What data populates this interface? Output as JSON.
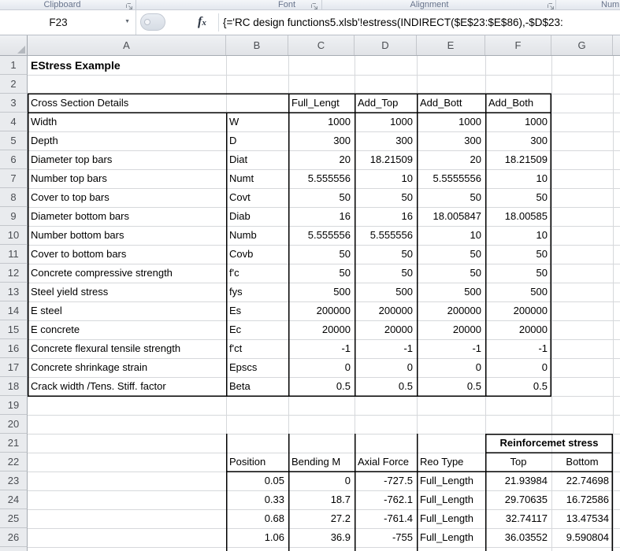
{
  "ribbon": {
    "groups": [
      {
        "label": "Clipboard"
      },
      {
        "label": "Font"
      },
      {
        "label": "Alignment"
      },
      {
        "label": "Numb"
      }
    ]
  },
  "formula_bar": {
    "cell_reference": "F23",
    "fx_label": "fx",
    "formula": "{='RC design functions5.xlsb'!estress(INDIRECT($E$23:$E$86),-$D$23:"
  },
  "sheet": {
    "column_headers": [
      "A",
      "B",
      "C",
      "D",
      "E",
      "F",
      "G"
    ],
    "row_numbers": [
      1,
      2,
      3,
      4,
      5,
      6,
      7,
      8,
      9,
      10,
      11,
      12,
      13,
      14,
      15,
      16,
      17,
      18,
      19,
      20,
      21,
      22,
      23,
      24,
      25,
      26
    ],
    "cells": [
      {
        "ref": "A1",
        "text": "EStress Example",
        "align": "left",
        "style": "title"
      },
      {
        "ref": "A3",
        "text": "Cross Section Details",
        "align": "left"
      },
      {
        "ref": "C3",
        "text": "Full_Lengt",
        "align": "left"
      },
      {
        "ref": "D3",
        "text": "Add_Top",
        "align": "left"
      },
      {
        "ref": "E3",
        "text": "Add_Bott",
        "align": "left"
      },
      {
        "ref": "F3",
        "text": "Add_Both",
        "align": "left"
      },
      {
        "ref": "A4",
        "text": "Width",
        "align": "left"
      },
      {
        "ref": "B4",
        "text": "W",
        "align": "left"
      },
      {
        "ref": "C4",
        "text": "1000",
        "align": "right"
      },
      {
        "ref": "D4",
        "text": "1000",
        "align": "right"
      },
      {
        "ref": "E4",
        "text": "1000",
        "align": "right"
      },
      {
        "ref": "F4",
        "text": "1000",
        "align": "right"
      },
      {
        "ref": "A5",
        "text": "Depth",
        "align": "left"
      },
      {
        "ref": "B5",
        "text": "D",
        "align": "left"
      },
      {
        "ref": "C5",
        "text": "300",
        "align": "right"
      },
      {
        "ref": "D5",
        "text": "300",
        "align": "right"
      },
      {
        "ref": "E5",
        "text": "300",
        "align": "right"
      },
      {
        "ref": "F5",
        "text": "300",
        "align": "right"
      },
      {
        "ref": "A6",
        "text": "Diameter top bars",
        "align": "left"
      },
      {
        "ref": "B6",
        "text": "Diat",
        "align": "left"
      },
      {
        "ref": "C6",
        "text": "20",
        "align": "right"
      },
      {
        "ref": "D6",
        "text": "18.21509",
        "align": "right"
      },
      {
        "ref": "E6",
        "text": "20",
        "align": "right"
      },
      {
        "ref": "F6",
        "text": "18.21509",
        "align": "right"
      },
      {
        "ref": "A7",
        "text": "Number top bars",
        "align": "left"
      },
      {
        "ref": "B7",
        "text": "Numt",
        "align": "left"
      },
      {
        "ref": "C7",
        "text": "5.555556",
        "align": "right"
      },
      {
        "ref": "D7",
        "text": "10",
        "align": "right"
      },
      {
        "ref": "E7",
        "text": "5.5555556",
        "align": "right"
      },
      {
        "ref": "F7",
        "text": "10",
        "align": "right"
      },
      {
        "ref": "A8",
        "text": "Cover to top bars",
        "align": "left"
      },
      {
        "ref": "B8",
        "text": "Covt",
        "align": "left"
      },
      {
        "ref": "C8",
        "text": "50",
        "align": "right"
      },
      {
        "ref": "D8",
        "text": "50",
        "align": "right"
      },
      {
        "ref": "E8",
        "text": "50",
        "align": "right"
      },
      {
        "ref": "F8",
        "text": "50",
        "align": "right"
      },
      {
        "ref": "A9",
        "text": "Diameter bottom bars",
        "align": "left"
      },
      {
        "ref": "B9",
        "text": "Diab",
        "align": "left"
      },
      {
        "ref": "C9",
        "text": "16",
        "align": "right"
      },
      {
        "ref": "D9",
        "text": "16",
        "align": "right"
      },
      {
        "ref": "E9",
        "text": "18.005847",
        "align": "right"
      },
      {
        "ref": "F9",
        "text": "18.00585",
        "align": "right"
      },
      {
        "ref": "A10",
        "text": "Number bottom bars",
        "align": "left"
      },
      {
        "ref": "B10",
        "text": "Numb",
        "align": "left"
      },
      {
        "ref": "C10",
        "text": "5.555556",
        "align": "right"
      },
      {
        "ref": "D10",
        "text": "5.555556",
        "align": "right"
      },
      {
        "ref": "E10",
        "text": "10",
        "align": "right"
      },
      {
        "ref": "F10",
        "text": "10",
        "align": "right"
      },
      {
        "ref": "A11",
        "text": "Cover to bottom bars",
        "align": "left"
      },
      {
        "ref": "B11",
        "text": "Covb",
        "align": "left"
      },
      {
        "ref": "C11",
        "text": "50",
        "align": "right"
      },
      {
        "ref": "D11",
        "text": "50",
        "align": "right"
      },
      {
        "ref": "E11",
        "text": "50",
        "align": "right"
      },
      {
        "ref": "F11",
        "text": "50",
        "align": "right"
      },
      {
        "ref": "A12",
        "text": "Concrete compressive strength",
        "align": "left"
      },
      {
        "ref": "B12",
        "text": "f'c",
        "align": "left"
      },
      {
        "ref": "C12",
        "text": "50",
        "align": "right"
      },
      {
        "ref": "D12",
        "text": "50",
        "align": "right"
      },
      {
        "ref": "E12",
        "text": "50",
        "align": "right"
      },
      {
        "ref": "F12",
        "text": "50",
        "align": "right"
      },
      {
        "ref": "A13",
        "text": "Steel yield stress",
        "align": "left"
      },
      {
        "ref": "B13",
        "text": "fys",
        "align": "left"
      },
      {
        "ref": "C13",
        "text": "500",
        "align": "right"
      },
      {
        "ref": "D13",
        "text": "500",
        "align": "right"
      },
      {
        "ref": "E13",
        "text": "500",
        "align": "right"
      },
      {
        "ref": "F13",
        "text": "500",
        "align": "right"
      },
      {
        "ref": "A14",
        "text": "E steel",
        "align": "left"
      },
      {
        "ref": "B14",
        "text": "Es",
        "align": "left"
      },
      {
        "ref": "C14",
        "text": "200000",
        "align": "right"
      },
      {
        "ref": "D14",
        "text": "200000",
        "align": "right"
      },
      {
        "ref": "E14",
        "text": "200000",
        "align": "right"
      },
      {
        "ref": "F14",
        "text": "200000",
        "align": "right"
      },
      {
        "ref": "A15",
        "text": "E concrete",
        "align": "left"
      },
      {
        "ref": "B15",
        "text": "Ec",
        "align": "left"
      },
      {
        "ref": "C15",
        "text": "20000",
        "align": "right"
      },
      {
        "ref": "D15",
        "text": "20000",
        "align": "right"
      },
      {
        "ref": "E15",
        "text": "20000",
        "align": "right"
      },
      {
        "ref": "F15",
        "text": "20000",
        "align": "right"
      },
      {
        "ref": "A16",
        "text": "Concrete flexural tensile strength",
        "align": "left"
      },
      {
        "ref": "B16",
        "text": "f'ct",
        "align": "left"
      },
      {
        "ref": "C16",
        "text": "-1",
        "align": "right"
      },
      {
        "ref": "D16",
        "text": "-1",
        "align": "right"
      },
      {
        "ref": "E16",
        "text": "-1",
        "align": "right"
      },
      {
        "ref": "F16",
        "text": "-1",
        "align": "right"
      },
      {
        "ref": "A17",
        "text": "Concrete shrinkage strain",
        "align": "left"
      },
      {
        "ref": "B17",
        "text": "Epscs",
        "align": "left"
      },
      {
        "ref": "C17",
        "text": "0",
        "align": "right"
      },
      {
        "ref": "D17",
        "text": "0",
        "align": "right"
      },
      {
        "ref": "E17",
        "text": "0",
        "align": "right"
      },
      {
        "ref": "F17",
        "text": "0",
        "align": "right"
      },
      {
        "ref": "A18",
        "text": "Crack width /Tens. Stiff. factor",
        "align": "left"
      },
      {
        "ref": "B18",
        "text": "Beta",
        "align": "left"
      },
      {
        "ref": "C18",
        "text": "0.5",
        "align": "right"
      },
      {
        "ref": "D18",
        "text": "0.5",
        "align": "right"
      },
      {
        "ref": "E18",
        "text": "0.5",
        "align": "right"
      },
      {
        "ref": "F18",
        "text": "0.5",
        "align": "right"
      },
      {
        "ref": "F21",
        "text": "Reinforcemet stress",
        "align": "center",
        "style": "bold",
        "span_to": "G"
      },
      {
        "ref": "B22",
        "text": "Position",
        "align": "left"
      },
      {
        "ref": "C22",
        "text": "Bending M",
        "align": "left"
      },
      {
        "ref": "D22",
        "text": "Axial Force",
        "align": "left"
      },
      {
        "ref": "E22",
        "text": "Reo Type",
        "align": "left"
      },
      {
        "ref": "F22",
        "text": "Top",
        "align": "center"
      },
      {
        "ref": "G22",
        "text": "Bottom",
        "align": "center"
      },
      {
        "ref": "B23",
        "text": "0.05",
        "align": "right"
      },
      {
        "ref": "C23",
        "text": "0",
        "align": "right"
      },
      {
        "ref": "D23",
        "text": "-727.5",
        "align": "right"
      },
      {
        "ref": "E23",
        "text": "Full_Length",
        "align": "left"
      },
      {
        "ref": "F23",
        "text": "21.93984",
        "align": "right"
      },
      {
        "ref": "G23",
        "text": "22.74698",
        "align": "right"
      },
      {
        "ref": "B24",
        "text": "0.33",
        "align": "right"
      },
      {
        "ref": "C24",
        "text": "18.7",
        "align": "right"
      },
      {
        "ref": "D24",
        "text": "-762.1",
        "align": "right"
      },
      {
        "ref": "E24",
        "text": "Full_Length",
        "align": "left"
      },
      {
        "ref": "F24",
        "text": "29.70635",
        "align": "right"
      },
      {
        "ref": "G24",
        "text": "16.72586",
        "align": "right"
      },
      {
        "ref": "B25",
        "text": "0.68",
        "align": "right"
      },
      {
        "ref": "C25",
        "text": "27.2",
        "align": "right"
      },
      {
        "ref": "D25",
        "text": "-761.4",
        "align": "right"
      },
      {
        "ref": "E25",
        "text": "Full_Length",
        "align": "left"
      },
      {
        "ref": "F25",
        "text": "32.74117",
        "align": "right"
      },
      {
        "ref": "G25",
        "text": "13.47534",
        "align": "right"
      },
      {
        "ref": "B26",
        "text": "1.06",
        "align": "right"
      },
      {
        "ref": "C26",
        "text": "36.9",
        "align": "right"
      },
      {
        "ref": "D26",
        "text": "-755",
        "align": "right"
      },
      {
        "ref": "E26",
        "text": "Full_Length",
        "align": "left"
      },
      {
        "ref": "F26",
        "text": "36.03552",
        "align": "right"
      },
      {
        "ref": "G26",
        "text": "9.590804",
        "align": "right"
      }
    ]
  },
  "colors": {
    "table_border": "#000000",
    "gridline": "#d6d8db",
    "header_fill": "#e9ebee",
    "ribbon_label": "#68748c"
  }
}
